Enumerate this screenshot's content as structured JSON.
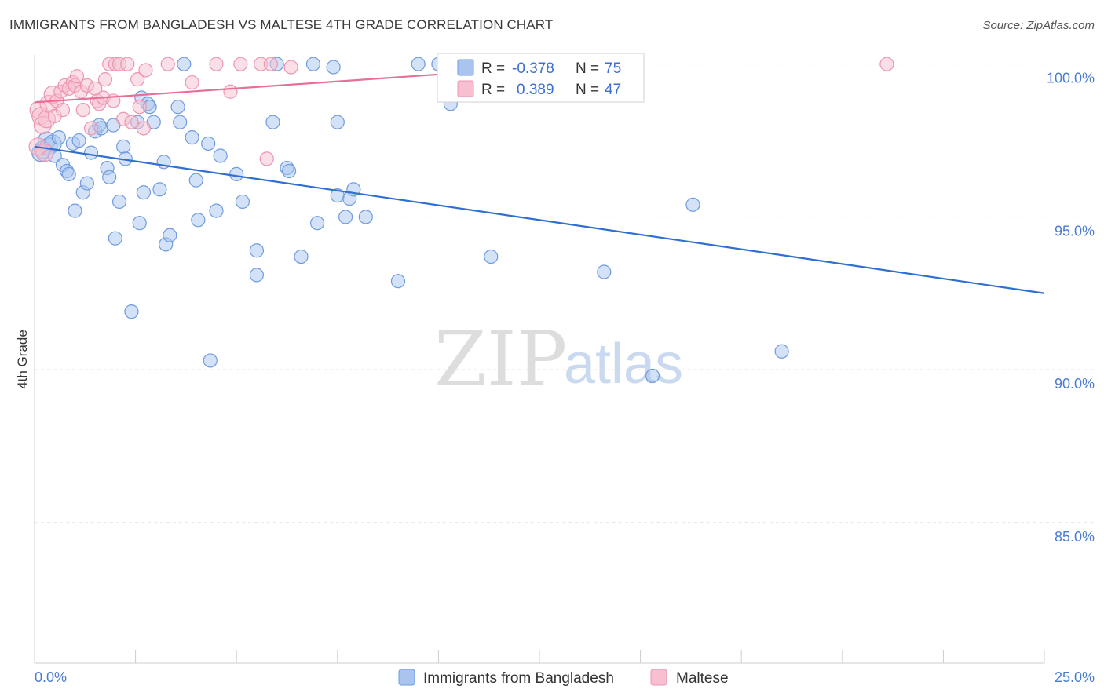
{
  "title": "IMMIGRANTS FROM BANGLADESH VS MALTESE 4TH GRADE CORRELATION CHART",
  "source": "Source: ZipAtlas.com",
  "watermark": {
    "zip": "ZIP",
    "atlas": "atlas"
  },
  "colors": {
    "blue_fill": "#a9c5ef",
    "blue_stroke": "#6f9be0",
    "blue_line": "#2f6fd0",
    "pink_fill": "#f7bfd0",
    "pink_stroke": "#ec95b2",
    "pink_line": "#e76f98",
    "grid": "#dddddd",
    "axis_text": "#4a7cd6"
  },
  "legend": {
    "rows": [
      {
        "r_label": "R =",
        "r_value": "-0.378",
        "n_label": "N =",
        "n_value": "75"
      },
      {
        "r_label": "R =",
        "r_value": "0.389",
        "n_label": "N =",
        "n_value": "47"
      }
    ]
  },
  "bottom_legend": [
    "Immigrants from Bangladesh",
    "Maltese"
  ],
  "chart_data": {
    "type": "scatter",
    "title": "IMMIGRANTS FROM BANGLADESH VS MALTESE 4TH GRADE CORRELATION CHART",
    "xlabel": "",
    "ylabel": "4th Grade",
    "xlim": [
      0,
      25
    ],
    "ylim": [
      80.4,
      100.3
    ],
    "x_tick_labels": [
      "0.0%",
      "25.0%"
    ],
    "y_ticks": [
      85,
      90,
      95,
      100
    ],
    "y_tick_labels": [
      "85.0%",
      "90.0%",
      "95.0%",
      "100.0%"
    ],
    "series": [
      {
        "name": "Immigrants from Bangladesh",
        "color": "blue",
        "trend": {
          "x": [
            0,
            25
          ],
          "y": [
            97.3,
            92.5
          ]
        },
        "points": [
          [
            0.2,
            97.2
          ],
          [
            0.3,
            97.5
          ],
          [
            0.35,
            97.3
          ],
          [
            0.45,
            97.4
          ],
          [
            0.5,
            97.0
          ],
          [
            0.6,
            97.6
          ],
          [
            0.7,
            96.7
          ],
          [
            0.8,
            96.5
          ],
          [
            0.85,
            96.4
          ],
          [
            0.95,
            97.4
          ],
          [
            1.0,
            95.2
          ],
          [
            1.1,
            97.5
          ],
          [
            1.2,
            95.8
          ],
          [
            1.3,
            96.1
          ],
          [
            1.4,
            97.1
          ],
          [
            1.5,
            97.8
          ],
          [
            1.6,
            98.0
          ],
          [
            1.65,
            97.9
          ],
          [
            1.8,
            96.6
          ],
          [
            1.85,
            96.3
          ],
          [
            1.95,
            98.0
          ],
          [
            2.0,
            94.3
          ],
          [
            2.1,
            95.5
          ],
          [
            2.2,
            97.3
          ],
          [
            2.25,
            96.9
          ],
          [
            2.4,
            91.9
          ],
          [
            2.55,
            98.1
          ],
          [
            2.6,
            94.8
          ],
          [
            2.65,
            98.9
          ],
          [
            2.7,
            95.8
          ],
          [
            2.8,
            98.7
          ],
          [
            2.85,
            98.6
          ],
          [
            2.95,
            98.1
          ],
          [
            3.1,
            95.9
          ],
          [
            3.2,
            96.8
          ],
          [
            3.25,
            94.1
          ],
          [
            3.35,
            94.4
          ],
          [
            3.55,
            98.6
          ],
          [
            3.6,
            98.1
          ],
          [
            3.7,
            100.0
          ],
          [
            3.9,
            97.6
          ],
          [
            4.0,
            96.2
          ],
          [
            4.05,
            94.9
          ],
          [
            4.3,
            97.4
          ],
          [
            4.35,
            90.3
          ],
          [
            4.5,
            95.2
          ],
          [
            4.6,
            97.0
          ],
          [
            5.0,
            96.4
          ],
          [
            5.15,
            95.5
          ],
          [
            5.5,
            93.1
          ],
          [
            5.5,
            93.9
          ],
          [
            5.9,
            98.1
          ],
          [
            6.0,
            100.0
          ],
          [
            6.25,
            96.6
          ],
          [
            6.3,
            96.5
          ],
          [
            6.6,
            93.7
          ],
          [
            6.9,
            100.0
          ],
          [
            7.0,
            94.8
          ],
          [
            7.4,
            99.9
          ],
          [
            7.5,
            98.1
          ],
          [
            7.5,
            95.7
          ],
          [
            7.7,
            95.0
          ],
          [
            7.8,
            95.6
          ],
          [
            7.9,
            95.9
          ],
          [
            8.2,
            95.0
          ],
          [
            9.0,
            92.9
          ],
          [
            9.5,
            100.0
          ],
          [
            10.0,
            100.0
          ],
          [
            10.3,
            98.7
          ],
          [
            11.3,
            93.7
          ],
          [
            14.1,
            93.2
          ],
          [
            15.3,
            89.8
          ],
          [
            16.3,
            95.4
          ],
          [
            18.5,
            90.6
          ],
          [
            0.15,
            97.1
          ]
        ]
      },
      {
        "name": "Maltese",
        "color": "pink",
        "trend": {
          "x": [
            0,
            14.8
          ],
          "y": [
            98.75,
            100.1
          ]
        },
        "points": [
          [
            0.1,
            98.5
          ],
          [
            0.15,
            98.3
          ],
          [
            0.2,
            98.0
          ],
          [
            0.25,
            97.1
          ],
          [
            0.3,
            98.2
          ],
          [
            0.35,
            98.7
          ],
          [
            0.45,
            99.0
          ],
          [
            0.5,
            98.3
          ],
          [
            0.55,
            98.8
          ],
          [
            0.65,
            99.1
          ],
          [
            0.7,
            98.5
          ],
          [
            0.75,
            99.3
          ],
          [
            0.85,
            99.2
          ],
          [
            0.95,
            99.4
          ],
          [
            1.0,
            99.3
          ],
          [
            1.05,
            99.6
          ],
          [
            1.15,
            99.1
          ],
          [
            1.2,
            98.5
          ],
          [
            1.3,
            99.3
          ],
          [
            1.4,
            97.9
          ],
          [
            1.5,
            99.2
          ],
          [
            1.55,
            98.8
          ],
          [
            1.6,
            98.7
          ],
          [
            1.7,
            98.9
          ],
          [
            1.75,
            99.5
          ],
          [
            1.85,
            100.0
          ],
          [
            1.95,
            98.8
          ],
          [
            2.0,
            100.0
          ],
          [
            2.1,
            100.0
          ],
          [
            2.2,
            98.2
          ],
          [
            2.3,
            100.0
          ],
          [
            2.4,
            98.1
          ],
          [
            2.55,
            99.5
          ],
          [
            2.6,
            98.6
          ],
          [
            2.7,
            97.9
          ],
          [
            2.75,
            99.8
          ],
          [
            3.3,
            100.0
          ],
          [
            3.9,
            99.4
          ],
          [
            4.5,
            100.0
          ],
          [
            4.85,
            99.1
          ],
          [
            5.1,
            100.0
          ],
          [
            5.6,
            100.0
          ],
          [
            5.75,
            96.9
          ],
          [
            5.85,
            100.0
          ],
          [
            6.35,
            99.9
          ],
          [
            21.1,
            100.0
          ],
          [
            0.08,
            97.3
          ]
        ]
      }
    ]
  }
}
